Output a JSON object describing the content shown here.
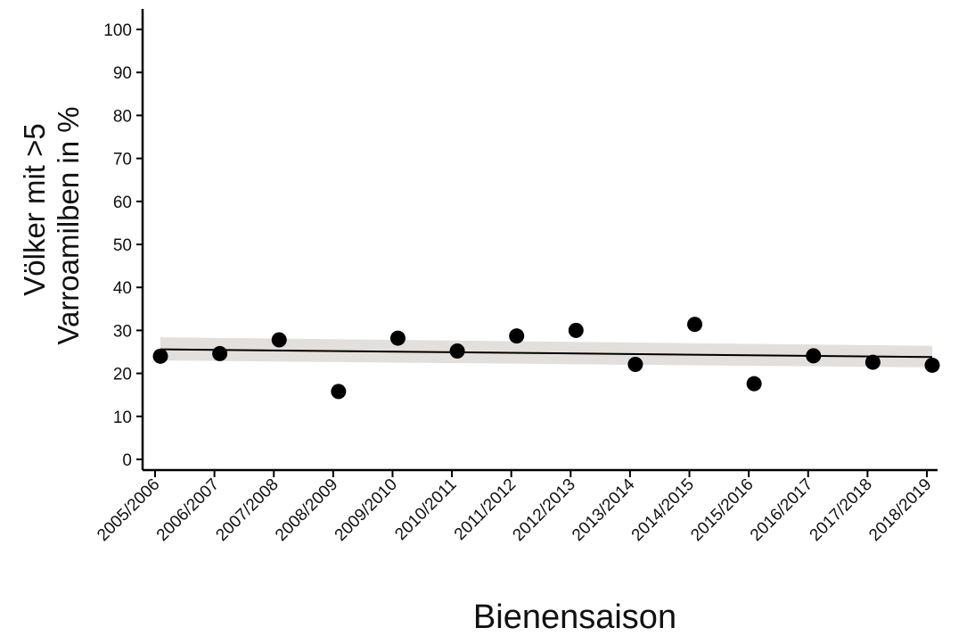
{
  "chart_data": {
    "type": "scatter",
    "title": "",
    "xlabel": "Bienensaison",
    "ylabel_lines": [
      "Völker mit >5",
      "Varroamilben in %"
    ],
    "categories": [
      "2005/2006",
      "2006/2007",
      "2007/2008",
      "2008/2009",
      "2009/2010",
      "2010/2011",
      "2011/2012",
      "2012/2013",
      "2013/2014",
      "2014/2015",
      "2015/2016",
      "2016/2017",
      "2017/2018",
      "2018/2019"
    ],
    "values": [
      24,
      24.6,
      27.8,
      15.8,
      28.2,
      25.2,
      28.7,
      30,
      22.1,
      31.4,
      17.6,
      24.1,
      22.6,
      21.9
    ],
    "ylim": [
      0,
      100
    ],
    "yticks": [
      0,
      10,
      20,
      30,
      40,
      50,
      60,
      70,
      80,
      90,
      100
    ],
    "trend_line": {
      "start": 25.6,
      "end": 23.8
    },
    "confidence_band": {
      "start_low": 23.0,
      "start_high": 28.4,
      "end_low": 21.4,
      "end_high": 26.4
    },
    "grid": false,
    "legend": "none",
    "colors": {
      "points": "#000000",
      "trend": "#000000",
      "band": "#e3dfdc",
      "axis": "#000000"
    }
  }
}
